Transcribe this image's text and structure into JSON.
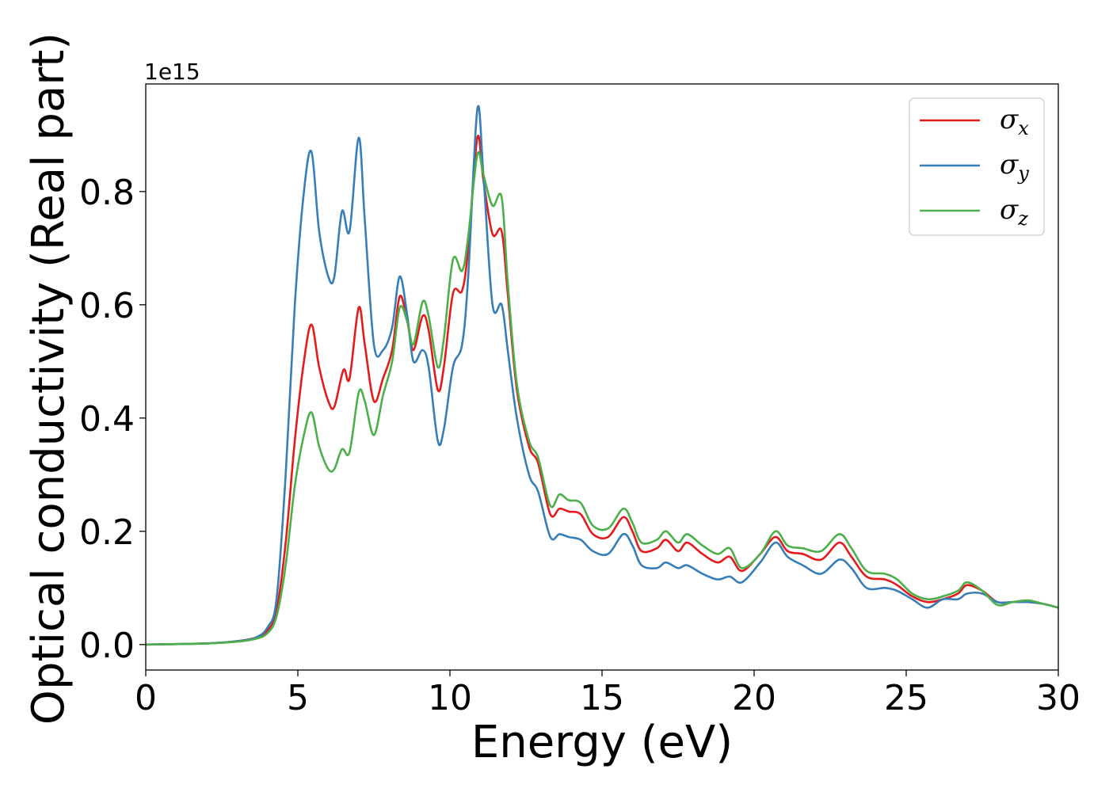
{
  "chart_data": {
    "type": "line",
    "xlabel": "Energy (eV)",
    "ylabel": "Optical conductivity (Real part)",
    "y_offset_text": "1e15",
    "xlim": [
      0,
      30
    ],
    "ylim": [
      -0.045,
      0.99
    ],
    "xticks": [
      0,
      5,
      10,
      15,
      20,
      25,
      30
    ],
    "yticks": [
      0.0,
      0.2,
      0.4,
      0.6,
      0.8
    ],
    "xtick_labels": [
      "0",
      "5",
      "10",
      "15",
      "20",
      "25",
      "30"
    ],
    "ytick_labels": [
      "0.0",
      "0.2",
      "0.4",
      "0.6",
      "0.8"
    ],
    "grid": false,
    "legend_position": "top-right",
    "series": [
      {
        "name": "σx",
        "symbol": "σ",
        "subscript": "x",
        "color": "#e41a1c",
        "points": [
          [
            0,
            0
          ],
          [
            2,
            0.002
          ],
          [
            3,
            0.006
          ],
          [
            3.6,
            0.012
          ],
          [
            4.0,
            0.025
          ],
          [
            4.3,
            0.06
          ],
          [
            4.6,
            0.18
          ],
          [
            4.9,
            0.36
          ],
          [
            5.2,
            0.5
          ],
          [
            5.45,
            0.565
          ],
          [
            5.7,
            0.49
          ],
          [
            6.0,
            0.43
          ],
          [
            6.2,
            0.42
          ],
          [
            6.5,
            0.485
          ],
          [
            6.7,
            0.47
          ],
          [
            7.0,
            0.595
          ],
          [
            7.2,
            0.53
          ],
          [
            7.5,
            0.43
          ],
          [
            7.8,
            0.47
          ],
          [
            8.1,
            0.52
          ],
          [
            8.35,
            0.615
          ],
          [
            8.6,
            0.57
          ],
          [
            8.8,
            0.52
          ],
          [
            9.1,
            0.58
          ],
          [
            9.3,
            0.555
          ],
          [
            9.6,
            0.45
          ],
          [
            9.8,
            0.49
          ],
          [
            10.1,
            0.62
          ],
          [
            10.4,
            0.625
          ],
          [
            10.6,
            0.7
          ],
          [
            10.9,
            0.895
          ],
          [
            11.1,
            0.82
          ],
          [
            11.4,
            0.725
          ],
          [
            11.7,
            0.73
          ],
          [
            11.9,
            0.62
          ],
          [
            12.2,
            0.45
          ],
          [
            12.6,
            0.35
          ],
          [
            12.9,
            0.32
          ],
          [
            13.3,
            0.23
          ],
          [
            13.6,
            0.24
          ],
          [
            13.9,
            0.235
          ],
          [
            14.3,
            0.23
          ],
          [
            14.7,
            0.195
          ],
          [
            15.2,
            0.19
          ],
          [
            15.7,
            0.225
          ],
          [
            16.0,
            0.2
          ],
          [
            16.3,
            0.165
          ],
          [
            16.8,
            0.17
          ],
          [
            17.1,
            0.185
          ],
          [
            17.5,
            0.165
          ],
          [
            17.8,
            0.18
          ],
          [
            18.3,
            0.16
          ],
          [
            18.8,
            0.145
          ],
          [
            19.2,
            0.155
          ],
          [
            19.6,
            0.13
          ],
          [
            20.2,
            0.16
          ],
          [
            20.7,
            0.19
          ],
          [
            21.1,
            0.165
          ],
          [
            21.6,
            0.16
          ],
          [
            22.2,
            0.15
          ],
          [
            22.8,
            0.18
          ],
          [
            23.2,
            0.155
          ],
          [
            23.7,
            0.12
          ],
          [
            24.3,
            0.115
          ],
          [
            24.7,
            0.105
          ],
          [
            25.2,
            0.085
          ],
          [
            25.7,
            0.075
          ],
          [
            26.2,
            0.08
          ],
          [
            26.7,
            0.09
          ],
          [
            27.0,
            0.105
          ],
          [
            27.5,
            0.095
          ],
          [
            28.0,
            0.075
          ],
          [
            28.5,
            0.075
          ],
          [
            29.0,
            0.075
          ],
          [
            29.5,
            0.072
          ],
          [
            30,
            0.065
          ]
        ]
      },
      {
        "name": "σy",
        "symbol": "σ",
        "subscript": "y",
        "color": "#377eb8",
        "points": [
          [
            0,
            0
          ],
          [
            2,
            0.002
          ],
          [
            3,
            0.006
          ],
          [
            3.6,
            0.012
          ],
          [
            4.0,
            0.03
          ],
          [
            4.3,
            0.08
          ],
          [
            4.6,
            0.3
          ],
          [
            4.9,
            0.6
          ],
          [
            5.2,
            0.8
          ],
          [
            5.45,
            0.87
          ],
          [
            5.7,
            0.73
          ],
          [
            6.0,
            0.65
          ],
          [
            6.2,
            0.65
          ],
          [
            6.45,
            0.765
          ],
          [
            6.7,
            0.73
          ],
          [
            7.0,
            0.895
          ],
          [
            7.2,
            0.75
          ],
          [
            7.5,
            0.53
          ],
          [
            7.8,
            0.52
          ],
          [
            8.1,
            0.56
          ],
          [
            8.35,
            0.65
          ],
          [
            8.6,
            0.58
          ],
          [
            8.8,
            0.5
          ],
          [
            9.1,
            0.52
          ],
          [
            9.3,
            0.49
          ],
          [
            9.6,
            0.36
          ],
          [
            9.8,
            0.38
          ],
          [
            10.1,
            0.49
          ],
          [
            10.4,
            0.53
          ],
          [
            10.6,
            0.65
          ],
          [
            10.9,
            0.945
          ],
          [
            11.1,
            0.83
          ],
          [
            11.4,
            0.6
          ],
          [
            11.7,
            0.6
          ],
          [
            11.9,
            0.52
          ],
          [
            12.2,
            0.4
          ],
          [
            12.6,
            0.3
          ],
          [
            12.9,
            0.27
          ],
          [
            13.3,
            0.19
          ],
          [
            13.6,
            0.195
          ],
          [
            13.9,
            0.19
          ],
          [
            14.3,
            0.185
          ],
          [
            14.7,
            0.165
          ],
          [
            15.2,
            0.16
          ],
          [
            15.7,
            0.195
          ],
          [
            16.0,
            0.175
          ],
          [
            16.3,
            0.14
          ],
          [
            16.8,
            0.135
          ],
          [
            17.1,
            0.145
          ],
          [
            17.5,
            0.135
          ],
          [
            17.8,
            0.14
          ],
          [
            18.3,
            0.125
          ],
          [
            18.8,
            0.115
          ],
          [
            19.2,
            0.12
          ],
          [
            19.6,
            0.11
          ],
          [
            20.2,
            0.145
          ],
          [
            20.7,
            0.18
          ],
          [
            21.1,
            0.155
          ],
          [
            21.6,
            0.14
          ],
          [
            22.2,
            0.125
          ],
          [
            22.8,
            0.15
          ],
          [
            23.2,
            0.135
          ],
          [
            23.7,
            0.1
          ],
          [
            24.3,
            0.1
          ],
          [
            24.7,
            0.095
          ],
          [
            25.2,
            0.08
          ],
          [
            25.7,
            0.065
          ],
          [
            26.2,
            0.08
          ],
          [
            26.7,
            0.08
          ],
          [
            27.0,
            0.09
          ],
          [
            27.5,
            0.09
          ],
          [
            28.0,
            0.075
          ],
          [
            28.5,
            0.075
          ],
          [
            29.0,
            0.075
          ],
          [
            29.5,
            0.072
          ],
          [
            30,
            0.065
          ]
        ]
      },
      {
        "name": "σz",
        "symbol": "σ",
        "subscript": "z",
        "color": "#4daf4a",
        "points": [
          [
            0,
            0
          ],
          [
            2,
            0.002
          ],
          [
            3,
            0.005
          ],
          [
            3.6,
            0.01
          ],
          [
            4.0,
            0.02
          ],
          [
            4.3,
            0.05
          ],
          [
            4.6,
            0.14
          ],
          [
            4.9,
            0.28
          ],
          [
            5.2,
            0.37
          ],
          [
            5.45,
            0.41
          ],
          [
            5.7,
            0.35
          ],
          [
            6.0,
            0.31
          ],
          [
            6.2,
            0.31
          ],
          [
            6.45,
            0.345
          ],
          [
            6.7,
            0.34
          ],
          [
            7.0,
            0.445
          ],
          [
            7.2,
            0.43
          ],
          [
            7.5,
            0.37
          ],
          [
            7.8,
            0.44
          ],
          [
            8.1,
            0.5
          ],
          [
            8.35,
            0.595
          ],
          [
            8.6,
            0.57
          ],
          [
            8.8,
            0.53
          ],
          [
            9.1,
            0.605
          ],
          [
            9.3,
            0.58
          ],
          [
            9.6,
            0.49
          ],
          [
            9.8,
            0.54
          ],
          [
            10.1,
            0.68
          ],
          [
            10.4,
            0.66
          ],
          [
            10.6,
            0.72
          ],
          [
            10.9,
            0.865
          ],
          [
            11.1,
            0.83
          ],
          [
            11.4,
            0.775
          ],
          [
            11.7,
            0.79
          ],
          [
            11.9,
            0.64
          ],
          [
            12.2,
            0.46
          ],
          [
            12.6,
            0.36
          ],
          [
            12.9,
            0.33
          ],
          [
            13.3,
            0.245
          ],
          [
            13.6,
            0.265
          ],
          [
            13.9,
            0.255
          ],
          [
            14.3,
            0.25
          ],
          [
            14.7,
            0.21
          ],
          [
            15.2,
            0.205
          ],
          [
            15.7,
            0.24
          ],
          [
            16.0,
            0.215
          ],
          [
            16.3,
            0.18
          ],
          [
            16.8,
            0.185
          ],
          [
            17.1,
            0.2
          ],
          [
            17.5,
            0.18
          ],
          [
            17.8,
            0.195
          ],
          [
            18.3,
            0.175
          ],
          [
            18.8,
            0.16
          ],
          [
            19.2,
            0.17
          ],
          [
            19.6,
            0.135
          ],
          [
            20.2,
            0.16
          ],
          [
            20.7,
            0.2
          ],
          [
            21.1,
            0.175
          ],
          [
            21.6,
            0.17
          ],
          [
            22.2,
            0.165
          ],
          [
            22.8,
            0.195
          ],
          [
            23.2,
            0.17
          ],
          [
            23.7,
            0.13
          ],
          [
            24.3,
            0.125
          ],
          [
            24.7,
            0.115
          ],
          [
            25.2,
            0.09
          ],
          [
            25.7,
            0.08
          ],
          [
            26.2,
            0.085
          ],
          [
            26.7,
            0.095
          ],
          [
            27.0,
            0.11
          ],
          [
            27.5,
            0.095
          ],
          [
            28.0,
            0.07
          ],
          [
            28.5,
            0.075
          ],
          [
            29.0,
            0.078
          ],
          [
            29.5,
            0.072
          ],
          [
            30,
            0.065
          ]
        ]
      }
    ]
  }
}
